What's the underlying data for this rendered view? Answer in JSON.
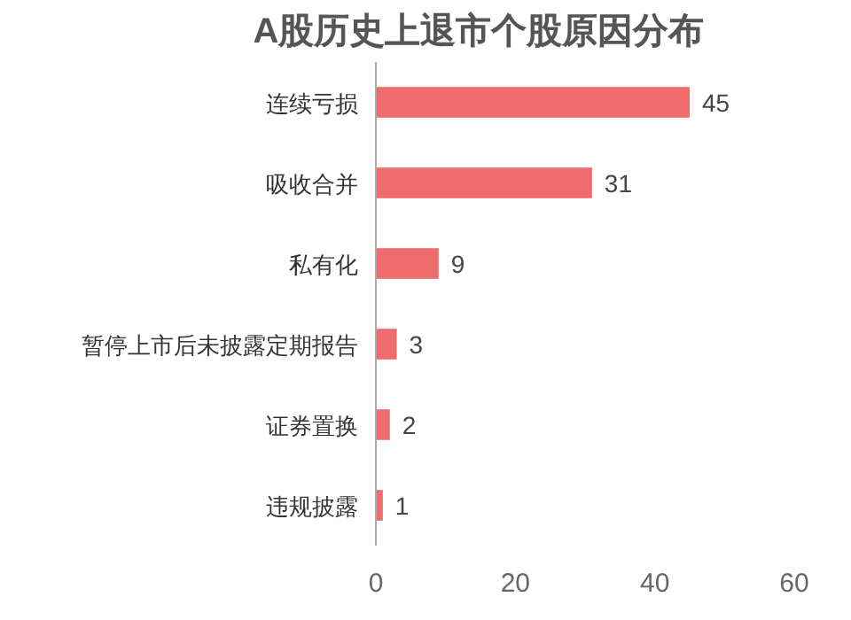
{
  "chart_data": {
    "type": "bar",
    "orientation": "horizontal",
    "title": "A股历史上退市个股原因分布",
    "categories": [
      "连续亏损",
      "吸收合并",
      "私有化",
      "暂停上市后未披露定期报告",
      "证券置换",
      "违规披露"
    ],
    "values": [
      45,
      31,
      9,
      3,
      2,
      1
    ],
    "color": "#f06b6b",
    "data_labels": true,
    "xlim": [
      0,
      60
    ],
    "xticks": [
      0,
      20,
      40,
      60
    ]
  }
}
